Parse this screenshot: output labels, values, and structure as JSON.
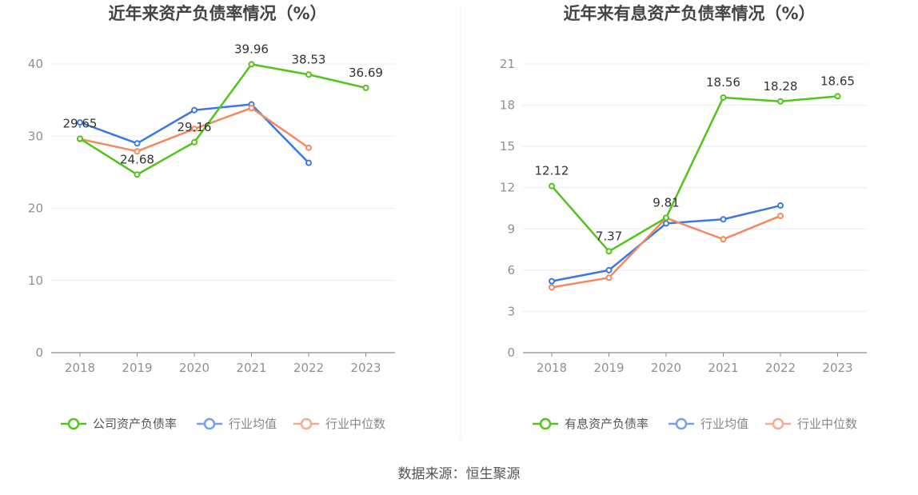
{
  "chart_data": [
    {
      "type": "line",
      "title": "近年来资产负债率情况（%）",
      "categories": [
        "2018",
        "2019",
        "2020",
        "2021",
        "2022",
        "2023"
      ],
      "ylim": [
        0,
        40
      ],
      "yticks": [
        "0",
        "10",
        "20",
        "30",
        "40"
      ],
      "grid": true,
      "legend_position": "bottom",
      "series": [
        {
          "name": "公司资产负债率",
          "color": "#52c41a",
          "values": [
            29.65,
            24.68,
            29.16,
            39.96,
            38.53,
            36.69
          ],
          "labels": [
            "29.65",
            "24.68",
            "29.16",
            "39.96",
            "38.53",
            "36.69"
          ]
        },
        {
          "name": "行业均值",
          "color": "#3b78e7",
          "values": [
            31.9,
            29.0,
            33.6,
            34.4,
            26.3,
            null
          ]
        },
        {
          "name": "行业中位数",
          "color": "#f4895f",
          "values": [
            29.6,
            27.9,
            31.0,
            33.9,
            28.4,
            null
          ]
        }
      ]
    },
    {
      "type": "line",
      "title": "近年来有息资产负债率情况（%）",
      "categories": [
        "2018",
        "2019",
        "2020",
        "2021",
        "2022",
        "2023"
      ],
      "ylim": [
        0,
        21
      ],
      "yticks": [
        "0",
        "3",
        "6",
        "9",
        "12",
        "15",
        "18",
        "21"
      ],
      "grid": true,
      "legend_position": "bottom",
      "series": [
        {
          "name": "有息资产负债率",
          "color": "#52c41a",
          "values": [
            12.12,
            7.37,
            9.81,
            18.56,
            18.28,
            18.65
          ],
          "labels": [
            "12.12",
            "7.37",
            "9.81",
            "18.56",
            "18.28",
            "18.65"
          ]
        },
        {
          "name": "行业均值",
          "color": "#3b78e7",
          "values": [
            5.2,
            6.0,
            9.4,
            9.7,
            10.7,
            null
          ]
        },
        {
          "name": "行业中位数",
          "color": "#f4895f",
          "values": [
            4.75,
            5.45,
            9.8,
            8.25,
            9.95,
            null
          ]
        }
      ]
    }
  ],
  "footer": {
    "source": "数据来源：恒生聚源"
  }
}
